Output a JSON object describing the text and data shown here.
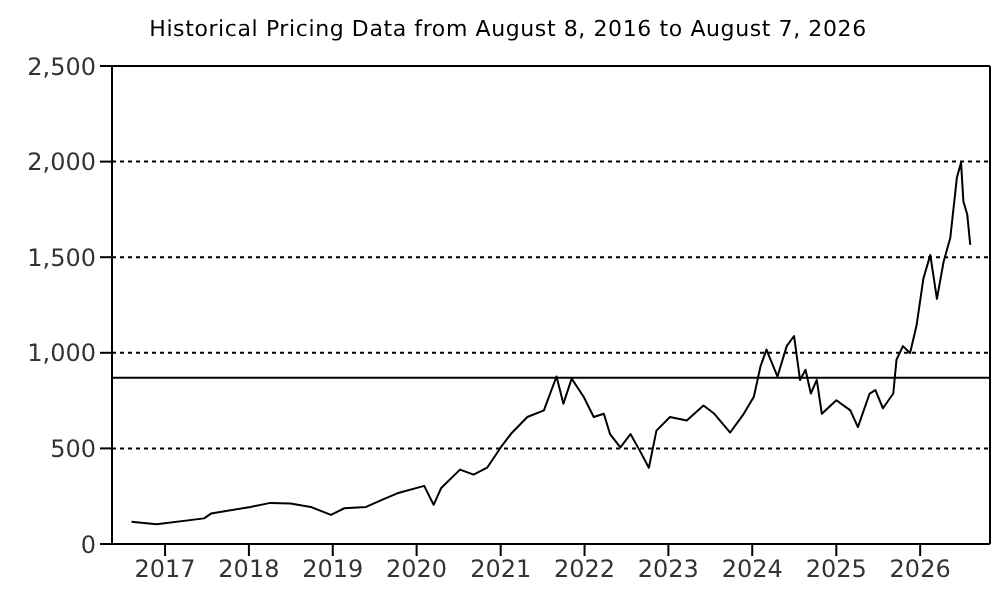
{
  "chart_data": {
    "type": "line",
    "title": "Historical Pricing Data from August 8, 2016 to August 7, 2026",
    "x": [
      "2016-08-08",
      "2016-11-25",
      "2017-06-20",
      "2017-07-20",
      "2018-01-08",
      "2018-04-05",
      "2018-07-01",
      "2018-09-27",
      "2018-12-24",
      "2019-02-20",
      "2019-05-26",
      "2019-08-08",
      "2019-10-09",
      "2020-02-03",
      "2020-03-15",
      "2020-04-17",
      "2020-07-08",
      "2020-09-05",
      "2020-11-03",
      "2021-01-01",
      "2021-02-14",
      "2021-04-27",
      "2021-07-08",
      "2021-09-01",
      "2021-10-01",
      "2021-11-06",
      "2021-12-28",
      "2022-02-10",
      "2022-03-26",
      "2022-04-22",
      "2022-06-06",
      "2022-07-20",
      "2022-08-30",
      "2022-10-08",
      "2022-11-10",
      "2023-01-08",
      "2023-03-22",
      "2023-06-03",
      "2023-07-20",
      "2023-09-27",
      "2023-11-25",
      "2024-01-08",
      "2024-02-06",
      "2024-03-03",
      "2024-04-20",
      "2024-05-30",
      "2024-07-01",
      "2024-07-27",
      "2024-08-20",
      "2024-09-12",
      "2024-10-08",
      "2024-10-30",
      "2025-01-01",
      "2025-03-03",
      "2025-04-05",
      "2025-05-26",
      "2025-06-20",
      "2025-07-23",
      "2025-09-06",
      "2025-09-20",
      "2025-10-18",
      "2025-11-18",
      "2025-12-16",
      "2026-01-15",
      "2026-02-14",
      "2026-03-15",
      "2026-04-13",
      "2026-05-12",
      "2026-06-10",
      "2026-06-28",
      "2026-07-08",
      "2026-07-25",
      "2026-08-07"
    ],
    "series": [
      {
        "color": "#000000",
        "values": [
          116,
          103,
          134,
          159,
          194,
          215,
          212,
          194,
          152,
          187,
          194,
          233,
          265,
          304,
          205,
          293,
          389,
          363,
          399,
          505,
          575,
          664,
          699,
          876,
          734,
          865,
          770,
          664,
          681,
          575,
          505,
          575,
          487,
          399,
          593,
          664,
          646,
          724,
          681,
          583,
          681,
          770,
          929,
          1017,
          876,
          1035,
          1088,
          858,
          911,
          787,
          858,
          681,
          752,
          699,
          611,
          787,
          805,
          710,
          787,
          964,
          1035,
          999,
          1141,
          1388,
          1512,
          1282,
          1476,
          1600,
          1917,
          1995,
          1793,
          1723,
          1564
        ]
      }
    ],
    "xlim": [
      "2016-05-15",
      "2026-11-01"
    ],
    "xticks": [
      "2017",
      "2018",
      "2019",
      "2020",
      "2021",
      "2022",
      "2023",
      "2024",
      "2025",
      "2026"
    ],
    "ylim": [
      0,
      2500
    ],
    "yticks": [
      0,
      500,
      {
        "value": 1000,
        "label": "1,000"
      },
      {
        "value": 1500,
        "label": "1,500"
      },
      {
        "value": 2000,
        "label": "2,000"
      },
      {
        "value": 2500,
        "label": "2,500"
      }
    ],
    "grid": "y",
    "marker": "none",
    "line_style": "solid",
    "legend": false,
    "ref_lines": [
      {
        "axis": "y",
        "value": 870,
        "color": "#000000",
        "line_style": "solid"
      }
    ]
  }
}
